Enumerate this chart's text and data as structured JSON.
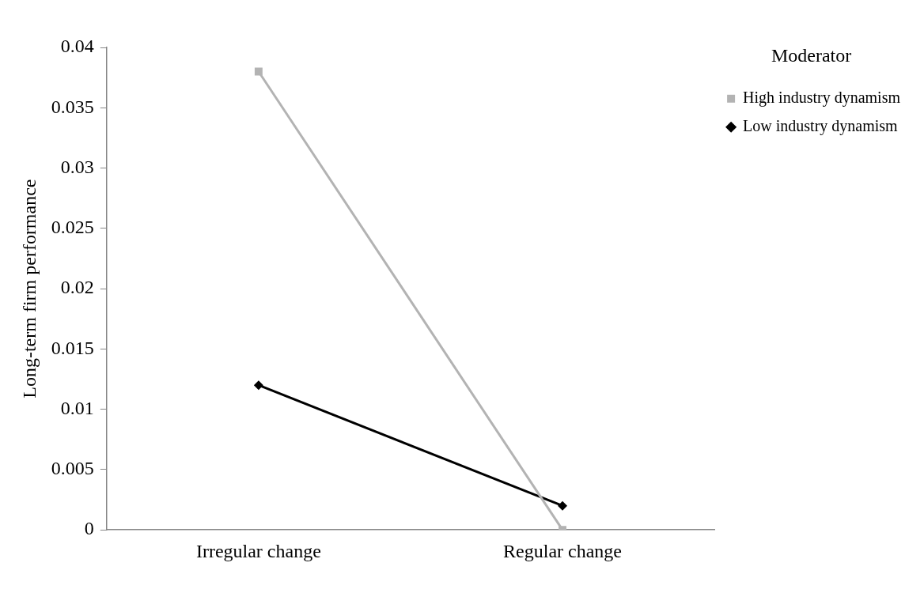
{
  "chart_data": {
    "type": "line",
    "ylabel": "Long-term firm performance",
    "legend_title": "Moderator",
    "categories": [
      "Irregular change",
      "Regular change"
    ],
    "series": [
      {
        "name": "High industry dynamism",
        "color": "#b3b3b3",
        "marker": "square",
        "values": [
          0.038,
          0
        ]
      },
      {
        "name": "Low industry dynamism",
        "color": "#000000",
        "marker": "diamond",
        "values": [
          0.012,
          0.002
        ]
      }
    ],
    "ylim": [
      0,
      0.04
    ],
    "yticks": [
      0,
      0.005,
      0.01,
      0.015,
      0.02,
      0.025,
      0.03,
      0.035,
      0.04
    ],
    "grid": false,
    "legend": "top right"
  }
}
